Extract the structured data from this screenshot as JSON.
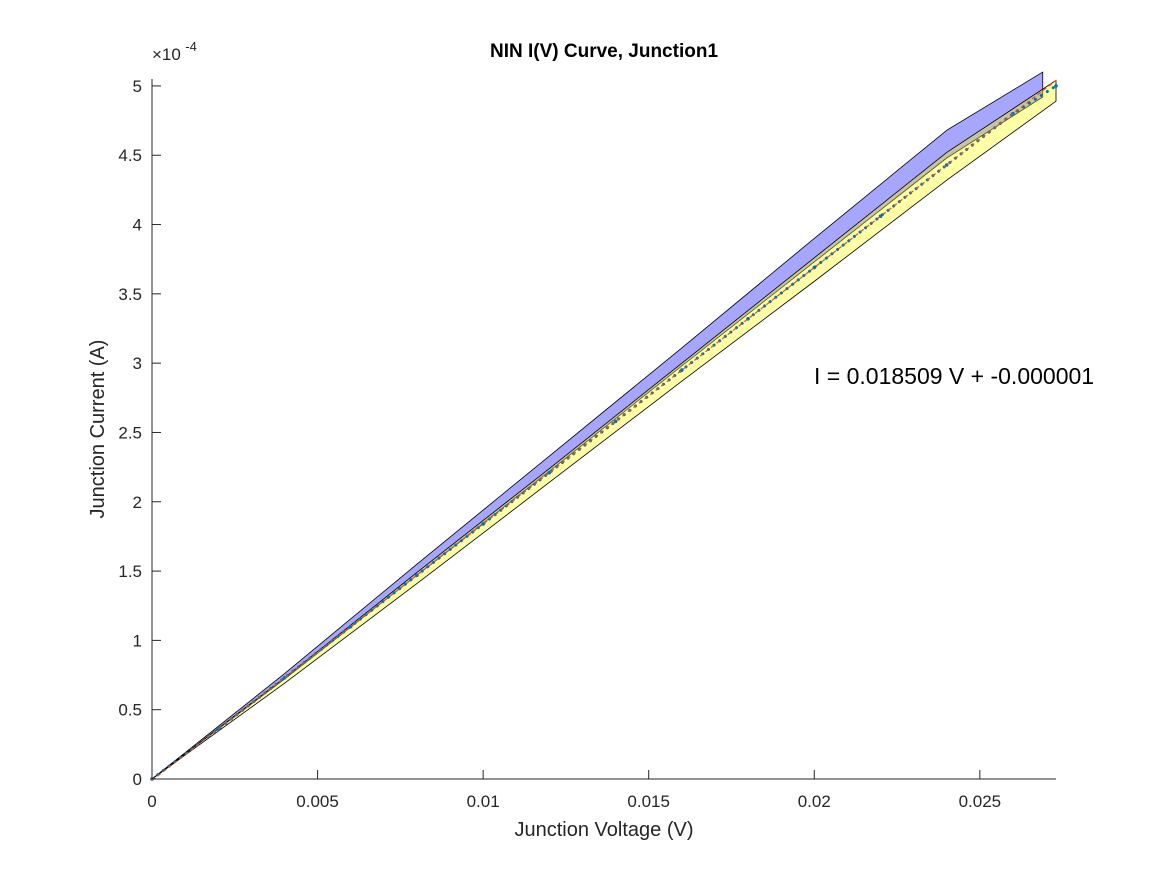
{
  "chart_data": {
    "type": "line",
    "title": "NIN I(V) Curve, Junction1",
    "xlabel": "Junction Voltage (V)",
    "ylabel": "Junction Current (A)",
    "xlim": [
      0,
      0.0273
    ],
    "ylim": [
      0,
      5.05
    ],
    "y_exponent_label": "×10",
    "y_exponent_power": "-4",
    "x_ticks": [
      {
        "value": 0,
        "label": "0"
      },
      {
        "value": 0.005,
        "label": "0.005"
      },
      {
        "value": 0.01,
        "label": "0.01"
      },
      {
        "value": 0.015,
        "label": "0.015"
      },
      {
        "value": 0.02,
        "label": "0.02"
      },
      {
        "value": 0.025,
        "label": "0.025"
      }
    ],
    "y_ticks": [
      {
        "value": 0,
        "label": "0"
      },
      {
        "value": 0.5,
        "label": "0.5"
      },
      {
        "value": 1,
        "label": "1"
      },
      {
        "value": 1.5,
        "label": "1.5"
      },
      {
        "value": 2,
        "label": "2"
      },
      {
        "value": 2.5,
        "label": "2.5"
      },
      {
        "value": 3,
        "label": "3"
      },
      {
        "value": 3.5,
        "label": "3.5"
      },
      {
        "value": 4,
        "label": "4"
      },
      {
        "value": 4.5,
        "label": "4.5"
      },
      {
        "value": 5,
        "label": "5"
      }
    ],
    "annotation": "I = 0.018509 V + -0.000001",
    "grid": false,
    "series": [
      {
        "style": "dotted-markers",
        "color": "#0072bd",
        "x": [
          0,
          0.002,
          0.004,
          0.006,
          0.008,
          0.01,
          0.012,
          0.014,
          0.016,
          0.018,
          0.02,
          0.022,
          0.024,
          0.026,
          0.0273
        ],
        "y": [
          0,
          0.36,
          0.73,
          1.1,
          1.47,
          1.84,
          2.21,
          2.58,
          2.95,
          3.32,
          3.69,
          4.06,
          4.43,
          4.8,
          5.0
        ]
      },
      {
        "style": "fit-line",
        "color": "#d95319",
        "x": [
          0,
          0.0273
        ],
        "y": [
          -0.01,
          5.04
        ]
      }
    ],
    "bands": [
      {
        "color": "#0000ff",
        "upper": {
          "x": [
            0,
            0.004,
            0.008,
            0.012,
            0.016,
            0.02,
            0.024,
            0.0269
          ],
          "y": [
            0,
            0.76,
            1.55,
            2.33,
            3.11,
            3.9,
            4.68,
            5.1
          ]
        },
        "lower": {
          "x": [
            0,
            0.004,
            0.008,
            0.012,
            0.016,
            0.02,
            0.024,
            0.0269
          ],
          "y": [
            0,
            0.72,
            1.47,
            2.22,
            2.98,
            3.73,
            4.48,
            4.92
          ]
        }
      },
      {
        "color": "#ffff00",
        "upper": {
          "x": [
            0,
            0.004,
            0.008,
            0.012,
            0.016,
            0.02,
            0.024,
            0.0273
          ],
          "y": [
            0,
            0.73,
            1.49,
            2.24,
            3.0,
            3.76,
            4.52,
            5.04
          ]
        },
        "lower": {
          "x": [
            0,
            0.004,
            0.008,
            0.012,
            0.016,
            0.02,
            0.024,
            0.0273
          ],
          "y": [
            0,
            0.69,
            1.41,
            2.14,
            2.87,
            3.59,
            4.32,
            4.89
          ]
        }
      }
    ]
  }
}
